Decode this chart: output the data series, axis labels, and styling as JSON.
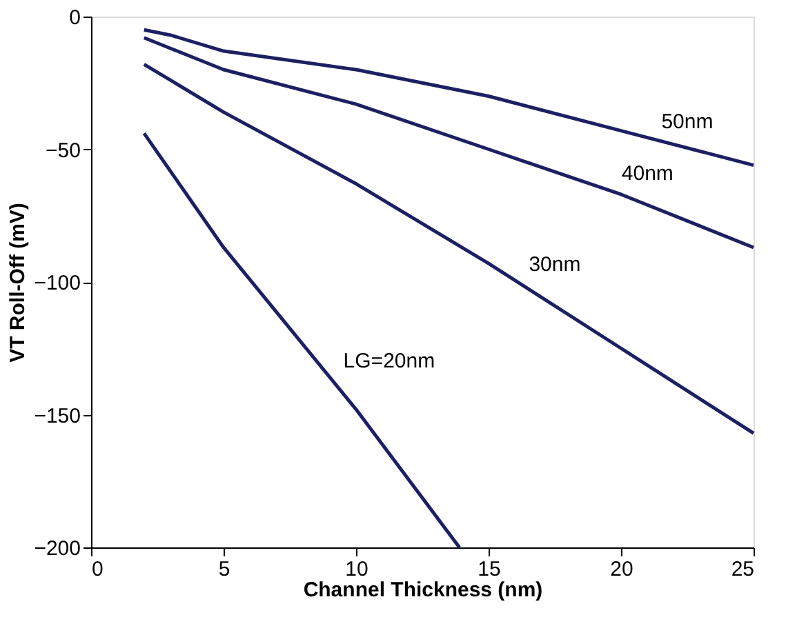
{
  "chart_data": {
    "type": "line",
    "xlabel": "Channel Thickness (nm)",
    "ylabel": "VT Roll-Off (mV)",
    "xlim": [
      0,
      25
    ],
    "ylim": [
      -200,
      0
    ],
    "xticks": [
      0,
      5,
      10,
      15,
      20,
      25
    ],
    "yticks": [
      -200,
      -150,
      -100,
      -50,
      0
    ],
    "grid": false,
    "legend": false,
    "marker": "none",
    "line_style": "solid",
    "series": [
      {
        "color": "#1c2063",
        "x": [
          2,
          3,
          5,
          10,
          15,
          20,
          25
        ],
        "values": [
          -5,
          -7,
          -13,
          -20,
          -30,
          -43,
          -56
        ]
      },
      {
        "color": "#1c2063",
        "x": [
          2,
          3,
          5,
          10,
          15,
          20,
          25
        ],
        "values": [
          -8,
          -12,
          -20,
          -33,
          -50,
          -67,
          -87
        ]
      },
      {
        "color": "#1c2063",
        "x": [
          2,
          5,
          10,
          15,
          20,
          25
        ],
        "values": [
          -18,
          -36,
          -63,
          -93,
          -125,
          -157
        ]
      },
      {
        "color": "#1c2063",
        "x": [
          2,
          5,
          10,
          13.9
        ],
        "values": [
          -44,
          -87,
          -148,
          -200
        ]
      }
    ],
    "annotations": [
      {
        "text": "50nm",
        "x": 21,
        "y": -45.6
      },
      {
        "text": "40nm",
        "x": 19.5,
        "y": -65.3
      },
      {
        "text": "30nm",
        "x": 16,
        "y": -99.4
      },
      {
        "text": "LG=20nm",
        "x": 9,
        "y": -135.8
      }
    ]
  }
}
